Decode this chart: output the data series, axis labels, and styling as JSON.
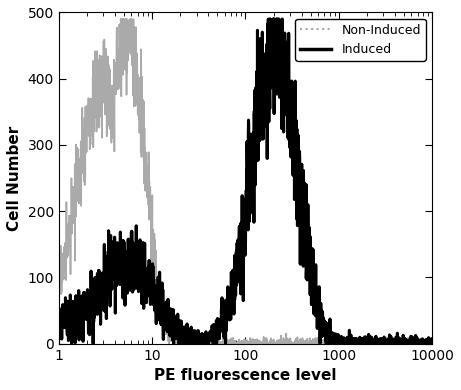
{
  "title": "",
  "xlabel": "PE fluorescence level",
  "ylabel": "Cell Number",
  "xlim_log": [
    1,
    10000
  ],
  "ylim": [
    0,
    500
  ],
  "yticks": [
    0,
    100,
    200,
    300,
    400,
    500
  ],
  "non_induced_color": "#aaaaaa",
  "induced_color": "#000000",
  "non_induced_label": "Non-Induced",
  "induced_label": "Induced",
  "non_induced_lw": 1.2,
  "induced_lw": 2.2,
  "legend_loc": "upper right",
  "legend_fontsize": 9,
  "xlabel_fontsize": 11,
  "ylabel_fontsize": 11,
  "figsize": [
    4.61,
    3.9
  ],
  "dpi": 100
}
